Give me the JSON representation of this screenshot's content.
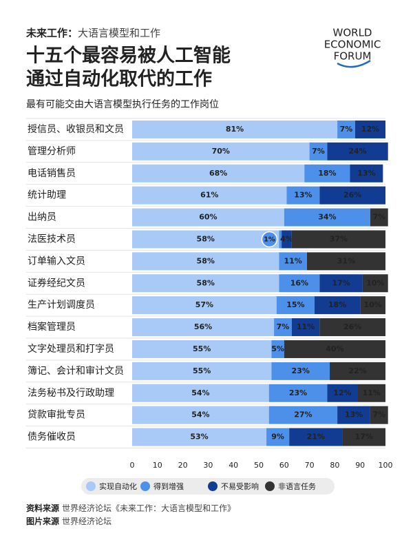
{
  "header": {
    "series_label": "未来工作：",
    "series_name": "大语言模型和工作",
    "title_lines": [
      "十五个最容易被人工智能",
      "通过自动化取代的工作"
    ],
    "logo_lines": [
      "WORLD",
      "ECONOMIC",
      "FORUM"
    ]
  },
  "chart_data": {
    "type": "bar",
    "orientation": "horizontal",
    "stacked": true,
    "subtitle": "最有可能交由大语言模型执行任务的工作岗位",
    "categories": [
      "授信员、收银员和文员",
      "管理分析师",
      "电话销售员",
      "统计助理",
      "出纳员",
      "法医技术员",
      "订单输入文员",
      "证券经纪文员",
      "生产计划调度员",
      "档案管理员",
      "文字处理员和打字员",
      "簿记、会计和审计文员",
      "法务秘书及行政助理",
      "贷款审批专员",
      "债务催收员"
    ],
    "series": [
      {
        "name": "实现自动化",
        "color": "#a9c9f6",
        "label_color": "#222222",
        "values": [
          81,
          70,
          68,
          61,
          60,
          58,
          58,
          58,
          57,
          56,
          55,
          55,
          54,
          54,
          53
        ],
        "value_labels": [
          "81%",
          "70%",
          "68%",
          "61%",
          "60%",
          "58%",
          "58%",
          "58%",
          "57%",
          "56%",
          "55%",
          "55%",
          "54%",
          "54%",
          "53%"
        ]
      },
      {
        "name": "得到增强",
        "color": "#4d90ea",
        "label_color": "#ffffff",
        "values": [
          7,
          7,
          18,
          13,
          34,
          1,
          11,
          16,
          15,
          7,
          5,
          23,
          23,
          27,
          9
        ],
        "value_labels": [
          "7%",
          "7%",
          "18%",
          "13%",
          "34%",
          "1%",
          "11%",
          "16%",
          "15%",
          "7%",
          "5%",
          "23%",
          "23%",
          "27%",
          "9%"
        ]
      },
      {
        "name": "不易受影响",
        "color": "#123c92",
        "label_color": "#ffffff",
        "values": [
          12,
          24,
          13,
          26,
          null,
          4,
          null,
          17,
          18,
          11,
          null,
          null,
          12,
          13,
          21
        ],
        "value_labels": [
          "12%",
          "24%",
          "13%",
          "26%",
          null,
          "4%",
          null,
          "17%",
          "18%",
          "11%",
          null,
          null,
          "12%",
          "13%",
          "21%"
        ]
      },
      {
        "name": "非语言任务",
        "color": "#333333",
        "label_color": "#ffffff",
        "values": [
          null,
          null,
          null,
          null,
          7,
          37,
          31,
          10,
          10,
          26,
          40,
          22,
          11,
          7,
          17
        ],
        "value_labels": [
          null,
          null,
          null,
          null,
          "7%",
          "37%",
          "31%",
          "10%",
          "10%",
          "26%",
          "40%",
          "22%",
          "11%",
          "7%",
          "17%"
        ]
      }
    ],
    "xlim": [
      0,
      100
    ],
    "xticks": [
      0,
      10,
      20,
      30,
      40,
      50,
      60,
      70,
      80,
      90,
      100
    ],
    "grid": false
  },
  "footer": [
    {
      "label": "资料来源",
      "text": "世界经济论坛《未来工作：大语言模型和工作》"
    },
    {
      "label": "图片来源",
      "text": "世界经济论坛"
    }
  ]
}
